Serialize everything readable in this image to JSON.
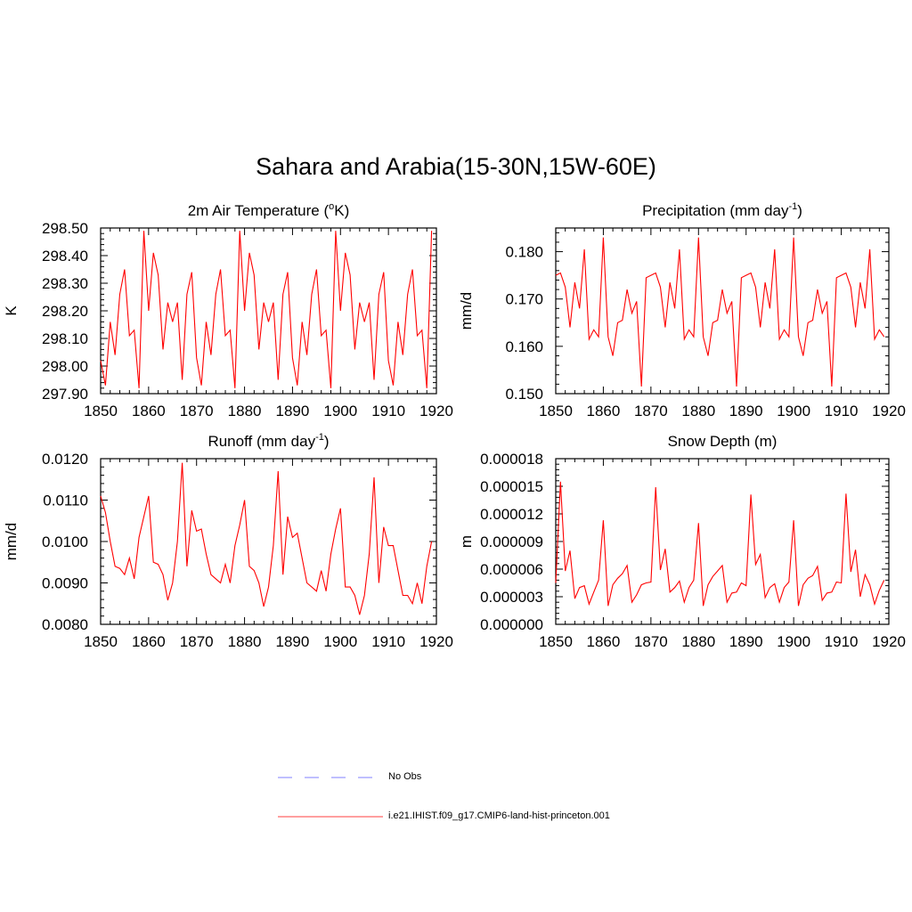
{
  "page_title": "Sahara and Arabia(15-30N,15W-60E)",
  "legend": [
    {
      "label": "No Obs",
      "color": "#9999ff",
      "style": "dashed"
    },
    {
      "label": "i.e21.IHIST.f09_g17.CMIP6-land-hist-princeton.001",
      "color": "#ff6666",
      "style": "solid"
    }
  ],
  "line_color": "#ff0000",
  "chart_data": [
    {
      "type": "line",
      "title": "2m Air Temperature (",
      "title_sup": "o",
      "title_tail": "K)",
      "ylabel": "K",
      "xlim": [
        1850,
        1920
      ],
      "ylim": [
        297.9,
        298.5
      ],
      "xticks": [
        "1850",
        "1860",
        "1870",
        "1880",
        "1890",
        "1900",
        "1910",
        "1920"
      ],
      "yticks": [
        "297.90",
        "298.00",
        "298.10",
        "298.20",
        "298.30",
        "298.40",
        "298.50"
      ],
      "x": [
        1850,
        1851,
        1852,
        1853,
        1854,
        1855,
        1856,
        1857,
        1858,
        1859,
        1860,
        1861,
        1862,
        1863,
        1864,
        1865,
        1866,
        1867,
        1868,
        1869,
        1870,
        1871,
        1872,
        1873,
        1874,
        1875,
        1876,
        1877,
        1878,
        1879,
        1880,
        1881,
        1882,
        1883,
        1884,
        1885,
        1886,
        1887,
        1888,
        1889,
        1890,
        1891,
        1892,
        1893,
        1894,
        1895,
        1896,
        1897,
        1898,
        1899,
        1900,
        1901,
        1902,
        1903,
        1904,
        1905,
        1906,
        1907,
        1908,
        1909,
        1910,
        1911,
        1912,
        1913,
        1914,
        1915,
        1916,
        1917,
        1918,
        1919
      ],
      "values": [
        298.02,
        297.93,
        298.16,
        298.04,
        298.26,
        298.35,
        298.11,
        298.13,
        297.92,
        298.49,
        298.2,
        298.41,
        298.33,
        298.06,
        298.23,
        298.16,
        298.23,
        297.95,
        298.26,
        298.34,
        298.03,
        297.93,
        298.16,
        298.04,
        298.26,
        298.35,
        298.11,
        298.13,
        297.92,
        298.49,
        298.2,
        298.41,
        298.33,
        298.06,
        298.23,
        298.16,
        298.23,
        297.95,
        298.26,
        298.34,
        298.03,
        297.93,
        298.16,
        298.04,
        298.26,
        298.35,
        298.11,
        298.13,
        297.92,
        298.49,
        298.2,
        298.41,
        298.33,
        298.06,
        298.23,
        298.16,
        298.23,
        297.95,
        298.26,
        298.34,
        298.02,
        297.93,
        298.16,
        298.04,
        298.26,
        298.35,
        298.11,
        298.13,
        297.92,
        298.49
      ]
    },
    {
      "type": "line",
      "title": "Precipitation (mm day",
      "title_sup": "-1",
      "title_tail": ")",
      "ylabel": "mm/d",
      "xlim": [
        1850,
        1920
      ],
      "ylim": [
        0.15,
        0.185
      ],
      "xticks": [
        "1850",
        "1860",
        "1870",
        "1880",
        "1890",
        "1900",
        "1910",
        "1920"
      ],
      "yticks": [
        "0.150",
        "0.160",
        "0.170",
        "0.180"
      ],
      "x": [
        1850,
        1851,
        1852,
        1853,
        1854,
        1855,
        1856,
        1857,
        1858,
        1859,
        1860,
        1861,
        1862,
        1863,
        1864,
        1865,
        1866,
        1867,
        1868,
        1869,
        1870,
        1871,
        1872,
        1873,
        1874,
        1875,
        1876,
        1877,
        1878,
        1879,
        1880,
        1881,
        1882,
        1883,
        1884,
        1885,
        1886,
        1887,
        1888,
        1889,
        1890,
        1891,
        1892,
        1893,
        1894,
        1895,
        1896,
        1897,
        1898,
        1899,
        1900,
        1901,
        1902,
        1903,
        1904,
        1905,
        1906,
        1907,
        1908,
        1909,
        1910,
        1911,
        1912,
        1913,
        1914,
        1915,
        1916,
        1917,
        1918,
        1919
      ],
      "values": [
        0.175,
        0.1755,
        0.1725,
        0.164,
        0.1735,
        0.168,
        0.1805,
        0.1615,
        0.1635,
        0.162,
        0.183,
        0.162,
        0.158,
        0.165,
        0.1655,
        0.172,
        0.167,
        0.1695,
        0.1515,
        0.1745,
        0.175,
        0.1755,
        0.1725,
        0.164,
        0.1735,
        0.168,
        0.1805,
        0.1615,
        0.1635,
        0.162,
        0.183,
        0.162,
        0.158,
        0.165,
        0.1655,
        0.172,
        0.167,
        0.1695,
        0.1515,
        0.1745,
        0.175,
        0.1755,
        0.1725,
        0.164,
        0.1735,
        0.168,
        0.1805,
        0.1615,
        0.1635,
        0.162,
        0.183,
        0.162,
        0.158,
        0.165,
        0.1655,
        0.172,
        0.167,
        0.1695,
        0.1515,
        0.1745,
        0.175,
        0.1755,
        0.1725,
        0.164,
        0.1735,
        0.168,
        0.1805,
        0.1615,
        0.1635,
        0.162
      ]
    },
    {
      "type": "line",
      "title": "Runoff (mm day",
      "title_sup": "-1",
      "title_tail": ")",
      "ylabel": "mm/d",
      "xlim": [
        1850,
        1920
      ],
      "ylim": [
        0.008,
        0.012
      ],
      "xticks": [
        "1850",
        "1860",
        "1870",
        "1880",
        "1890",
        "1900",
        "1910",
        "1920"
      ],
      "yticks": [
        "0.0080",
        "0.0090",
        "0.0100",
        "0.0110",
        "0.0120"
      ],
      "x": [
        1850,
        1851,
        1852,
        1853,
        1854,
        1855,
        1856,
        1857,
        1858,
        1859,
        1860,
        1861,
        1862,
        1863,
        1864,
        1865,
        1866,
        1867,
        1868,
        1869,
        1870,
        1871,
        1872,
        1873,
        1874,
        1875,
        1876,
        1877,
        1878,
        1879,
        1880,
        1881,
        1882,
        1883,
        1884,
        1885,
        1886,
        1887,
        1888,
        1889,
        1890,
        1891,
        1892,
        1893,
        1894,
        1895,
        1896,
        1897,
        1898,
        1899,
        1900,
        1901,
        1902,
        1903,
        1904,
        1905,
        1906,
        1907,
        1908,
        1909,
        1910,
        1911,
        1912,
        1913,
        1914,
        1915,
        1916,
        1917,
        1918,
        1919
      ],
      "values": [
        0.0111,
        0.0107,
        0.01,
        0.0094,
        0.00935,
        0.0092,
        0.0096,
        0.0091,
        0.0101,
        0.0106,
        0.0111,
        0.0095,
        0.00945,
        0.0092,
        0.00858,
        0.009,
        0.01,
        0.0119,
        0.0094,
        0.01075,
        0.01025,
        0.0103,
        0.0097,
        0.0092,
        0.0091,
        0.009,
        0.00945,
        0.009,
        0.0099,
        0.0104,
        0.011,
        0.0094,
        0.0093,
        0.009,
        0.00843,
        0.0089,
        0.0099,
        0.0117,
        0.0092,
        0.0106,
        0.0101,
        0.0102,
        0.0096,
        0.009,
        0.0089,
        0.0088,
        0.0093,
        0.0088,
        0.0097,
        0.0103,
        0.0108,
        0.0089,
        0.0089,
        0.0087,
        0.00823,
        0.0087,
        0.0097,
        0.01155,
        0.009,
        0.01035,
        0.0099,
        0.0099,
        0.0093,
        0.0087,
        0.0087,
        0.0085,
        0.009,
        0.0085,
        0.0094,
        0.01
      ]
    },
    {
      "type": "line",
      "title": "Snow Depth (m)",
      "title_sup": "",
      "title_tail": "",
      "ylabel": "m",
      "xlim": [
        1850,
        1920
      ],
      "ylim": [
        0.0,
        1.8e-05
      ],
      "xticks": [
        "1850",
        "1860",
        "1870",
        "1880",
        "1890",
        "1900",
        "1910",
        "1920"
      ],
      "yticks": [
        "0.000000",
        "0.000003",
        "0.000006",
        "0.000009",
        "0.000012",
        "0.000015",
        "0.000018"
      ],
      "x": [
        1850,
        1851,
        1852,
        1853,
        1854,
        1855,
        1856,
        1857,
        1858,
        1859,
        1860,
        1861,
        1862,
        1863,
        1864,
        1865,
        1866,
        1867,
        1868,
        1869,
        1870,
        1871,
        1872,
        1873,
        1874,
        1875,
        1876,
        1877,
        1878,
        1879,
        1880,
        1881,
        1882,
        1883,
        1884,
        1885,
        1886,
        1887,
        1888,
        1889,
        1890,
        1891,
        1892,
        1893,
        1894,
        1895,
        1896,
        1897,
        1898,
        1899,
        1900,
        1901,
        1902,
        1903,
        1904,
        1905,
        1906,
        1907,
        1908,
        1909,
        1910,
        1911,
        1912,
        1913,
        1914,
        1915,
        1916,
        1917,
        1918,
        1919
      ],
      "values": [
        4.5e-06,
        1.55e-05,
        5.8e-06,
        8e-06,
        2.8e-06,
        4e-06,
        4.2e-06,
        2.2e-06,
        3.5e-06,
        4.8e-06,
        1.13e-05,
        2e-06,
        4.3e-06,
        5e-06,
        5.5e-06,
        6.4e-06,
        2.4e-06,
        3.2e-06,
        4.3e-06,
        4.5e-06,
        4.6e-06,
        1.49e-05,
        5.9e-06,
        8.2e-06,
        3.5e-06,
        4e-06,
        4.7e-06,
        2.4e-06,
        4e-06,
        4.8e-06,
        1.1e-05,
        2e-06,
        4.3e-06,
        5.2e-06,
        5.8e-06,
        6.4e-06,
        2.4e-06,
        3.4e-06,
        3.5e-06,
        4.5e-06,
        4.2e-06,
        1.41e-05,
        6.5e-06,
        7.6e-06,
        2.9e-06,
        4e-06,
        4.4e-06,
        2.4e-06,
        4e-06,
        4.6e-06,
        1.13e-05,
        2e-06,
        4.3e-06,
        5e-06,
        5.3e-06,
        6.3e-06,
        2.6e-06,
        3.4e-06,
        3.5e-06,
        4.6e-06,
        4.5e-06,
        1.42e-05,
        5.7e-06,
        8.1e-06,
        3e-06,
        5.4e-06,
        4.3e-06,
        2.2e-06,
        3.7e-06,
        4.8e-06
      ]
    }
  ]
}
